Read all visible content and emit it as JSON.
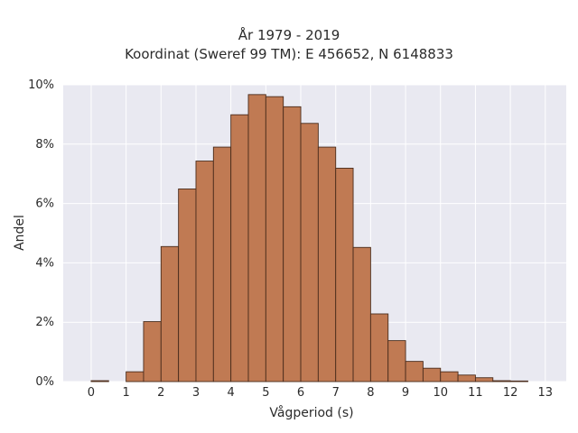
{
  "chart_data": {
    "type": "bar",
    "title": "År 1979 - 2019",
    "subtitle": "Koordinat (Sweref 99 TM): E 456652, N 6148833",
    "xlabel": "Vågperiod (s)",
    "ylabel": "Andel",
    "xlim": [
      -0.8,
      13.6
    ],
    "ylim": [
      0,
      0.1
    ],
    "xticks": [
      "0",
      "1",
      "2",
      "3",
      "4",
      "5",
      "6",
      "7",
      "8",
      "9",
      "10",
      "11",
      "12",
      "13"
    ],
    "yticks": [
      "0%",
      "2%",
      "4%",
      "6%",
      "8%",
      "10%"
    ],
    "bin_width": 0.5,
    "bins": [
      {
        "x0": 0.0,
        "value": 0.0003
      },
      {
        "x0": 0.5,
        "value": 0.0
      },
      {
        "x0": 1.0,
        "value": 0.0033
      },
      {
        "x0": 1.5,
        "value": 0.0202
      },
      {
        "x0": 2.0,
        "value": 0.0455
      },
      {
        "x0": 2.5,
        "value": 0.0649
      },
      {
        "x0": 3.0,
        "value": 0.0743
      },
      {
        "x0": 3.5,
        "value": 0.079
      },
      {
        "x0": 4.0,
        "value": 0.0899
      },
      {
        "x0": 4.5,
        "value": 0.0967
      },
      {
        "x0": 5.0,
        "value": 0.096
      },
      {
        "x0": 5.5,
        "value": 0.0926
      },
      {
        "x0": 6.0,
        "value": 0.087
      },
      {
        "x0": 6.5,
        "value": 0.079
      },
      {
        "x0": 7.0,
        "value": 0.0719
      },
      {
        "x0": 7.5,
        "value": 0.0452
      },
      {
        "x0": 8.0,
        "value": 0.0228
      },
      {
        "x0": 8.5,
        "value": 0.0138
      },
      {
        "x0": 9.0,
        "value": 0.0068
      },
      {
        "x0": 9.5,
        "value": 0.0045
      },
      {
        "x0": 10.0,
        "value": 0.0033
      },
      {
        "x0": 10.5,
        "value": 0.0022
      },
      {
        "x0": 11.0,
        "value": 0.0013
      },
      {
        "x0": 11.5,
        "value": 0.0003
      },
      {
        "x0": 12.0,
        "value": 0.0002
      },
      {
        "x0": 12.5,
        "value": 0.0
      },
      {
        "x0": 13.0,
        "value": 0.0
      }
    ],
    "grid": true,
    "legend": "none"
  },
  "colors": {
    "bar_fill": "#c07a53",
    "bar_edge": "#4a2c1c",
    "plot_background": "#e9e9f1",
    "grid": "#ffffff"
  }
}
